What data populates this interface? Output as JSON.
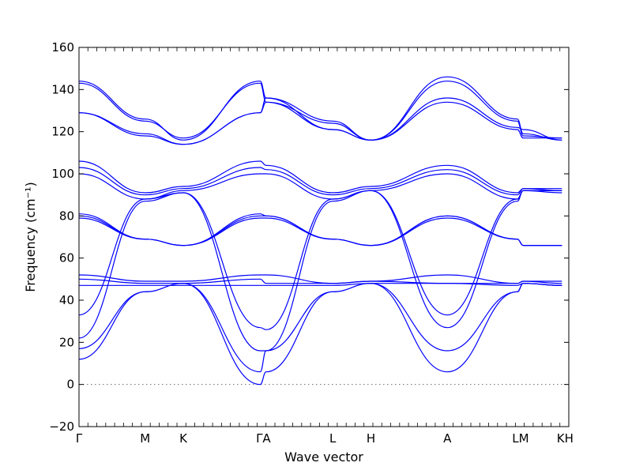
{
  "chart_data": {
    "type": "line",
    "title": "",
    "xlabel": "Wave vector",
    "ylabel": "Frequency (cm⁻¹)",
    "ylim": [
      -20,
      160
    ],
    "yticks": [
      -20,
      0,
      20,
      40,
      60,
      80,
      100,
      120,
      140,
      160
    ],
    "xlim": [
      0,
      1
    ],
    "x_high_symmetry": [
      {
        "label": "Γ",
        "pos": 0.0
      },
      {
        "label": "M",
        "pos": 0.135
      },
      {
        "label": "K",
        "pos": 0.213
      },
      {
        "label": "ΓA",
        "pos": 0.37
      },
      {
        "label": "L",
        "pos": 0.518
      },
      {
        "label": "H",
        "pos": 0.596
      },
      {
        "label": "A",
        "pos": 0.752
      },
      {
        "label": "LM",
        "pos": 0.895
      },
      {
        "label": "KH",
        "pos": 0.986
      }
    ],
    "zero_line": {
      "y": 0,
      "style": "dotted"
    },
    "color": "#0000ff",
    "series": [
      {
        "values": [
          144,
          126,
          116,
          144,
          136,
          125,
          116,
          146,
          126,
          119,
          116
        ]
      },
      {
        "values": [
          143,
          125,
          117,
          143,
          134,
          124,
          116,
          144,
          125,
          118,
          117
        ]
      },
      {
        "values": [
          129,
          119,
          114,
          129,
          136,
          121,
          116,
          136,
          122,
          121,
          116
        ]
      },
      {
        "values": [
          129,
          118,
          114,
          129,
          134,
          121,
          116,
          134,
          121,
          117,
          117
        ]
      },
      {
        "values": [
          106,
          91,
          94,
          106,
          104,
          91,
          94,
          104,
          91,
          93,
          93
        ]
      },
      {
        "values": [
          103,
          90,
          93,
          103,
          102,
          90,
          93,
          102,
          90,
          93,
          92
        ]
      },
      {
        "values": [
          100,
          88,
          92,
          100,
          100,
          88,
          92,
          100,
          88,
          92,
          91
        ]
      },
      {
        "values": [
          81,
          69,
          66,
          81,
          80,
          69,
          66,
          80,
          69,
          66,
          66
        ]
      },
      {
        "values": [
          80,
          69,
          66,
          80,
          80,
          69,
          66,
          80,
          69,
          66,
          66
        ]
      },
      {
        "values": [
          79,
          69,
          66,
          79,
          79,
          69,
          66,
          79,
          69,
          66,
          66
        ]
      },
      {
        "values": [
          52,
          49,
          49,
          52,
          52,
          48,
          49,
          52,
          48,
          49,
          49
        ]
      },
      {
        "values": [
          50,
          48,
          48,
          50,
          48,
          48,
          49,
          48,
          48,
          49,
          48
        ]
      },
      {
        "values": [
          47,
          47,
          47,
          47,
          47,
          47,
          48,
          48,
          47,
          48,
          47
        ]
      },
      {
        "values": [
          33,
          88,
          91,
          27,
          26,
          88,
          92,
          33,
          88,
          92,
          92
        ]
      },
      {
        "values": [
          22,
          87,
          91,
          16,
          16,
          87,
          92,
          27,
          87,
          92,
          92
        ]
      },
      {
        "values": [
          17,
          44,
          48,
          6,
          16,
          44,
          48,
          16,
          44,
          48,
          47
        ]
      },
      {
        "values": [
          12,
          44,
          48,
          0,
          6,
          44,
          48,
          6,
          44,
          48,
          47
        ]
      }
    ]
  }
}
